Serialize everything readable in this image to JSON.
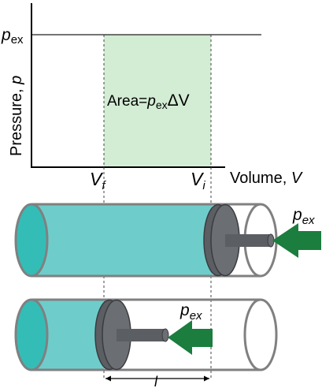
{
  "graph": {
    "y_axis": {
      "label": "Pressure, p",
      "label_text": "Pressure, ",
      "label_var": "p"
    },
    "x_axis": {
      "label": "Volume, V",
      "label_text": "Volume, ",
      "label_var": "V"
    },
    "pressure_level": {
      "symbol": "p",
      "subscript": "ex"
    },
    "volume_marks": [
      {
        "symbol": "V",
        "subscript": "f"
      },
      {
        "symbol": "V",
        "subscript": "i"
      }
    ],
    "area_label": {
      "prefix": "Area=",
      "symbol": "p",
      "subscript": "ex",
      "suffix": "ΔV"
    }
  },
  "cylinders": [
    {
      "state": "initial",
      "arrow_label": {
        "symbol": "p",
        "subscript": "ex"
      }
    },
    {
      "state": "final",
      "arrow_label": {
        "symbol": "p",
        "subscript": "ex"
      }
    }
  ],
  "displacement_label": "l",
  "colors": {
    "area_fill": "#d3ecd4",
    "gas_fill": "#6ecdcb",
    "cylinder_end": "#34bdb7",
    "piston": "#5b5e63",
    "arrow": "#1b7d3e",
    "outline": "#808080"
  }
}
